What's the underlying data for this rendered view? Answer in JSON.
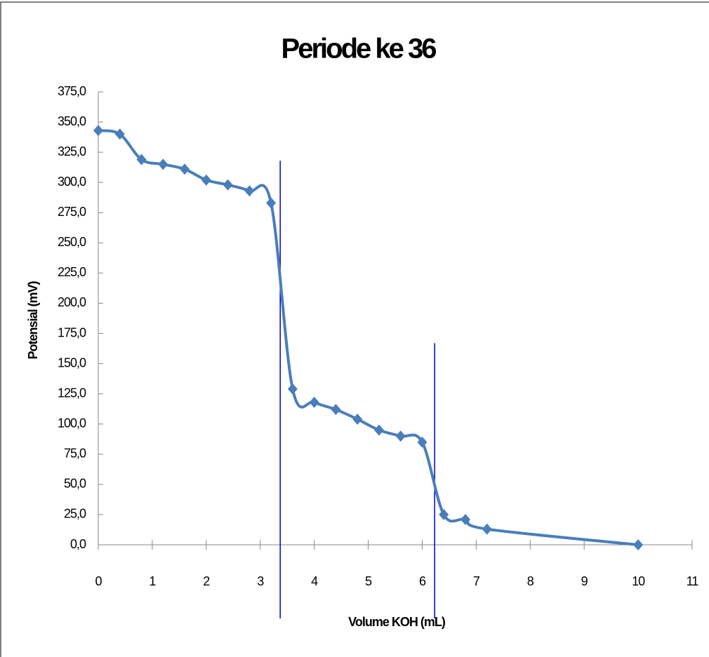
{
  "chart_data": {
    "type": "line",
    "title": "Periode ke 36",
    "x_label": "Volume KOH (mL)",
    "y_label": "Potensial (mV)",
    "x": [
      0,
      0.4,
      0.8,
      1.2,
      1.6,
      2.0,
      2.4,
      2.8,
      3.2,
      3.6,
      4.0,
      4.4,
      4.8,
      5.2,
      5.6,
      6.0,
      6.4,
      6.8,
      7.2,
      10
    ],
    "values": [
      343,
      340,
      319,
      315,
      311,
      302,
      298,
      293,
      283,
      129,
      118,
      112,
      104,
      95,
      90,
      85,
      25,
      21,
      13,
      0
    ],
    "color": "#4a7ebb",
    "xlim": [
      0,
      11
    ],
    "xticks": [
      0,
      1,
      2,
      3,
      4,
      5,
      6,
      7,
      8,
      9,
      10,
      11
    ],
    "ylim": [
      0,
      375
    ],
    "yticks": [
      {
        "value": 0,
        "label": "0,0"
      },
      {
        "value": 25,
        "label": "25,0"
      },
      {
        "value": 50,
        "label": "50,0"
      },
      {
        "value": 75,
        "label": "75,0"
      },
      {
        "value": 100,
        "label": "100,0"
      },
      {
        "value": 125,
        "label": "125,0"
      },
      {
        "value": 150,
        "label": "150,0"
      },
      {
        "value": 175,
        "label": "175,0"
      },
      {
        "value": 200,
        "label": "200,0"
      },
      {
        "value": 225,
        "label": "225,0"
      },
      {
        "value": 250,
        "label": "250,0"
      },
      {
        "value": 275,
        "label": "275,0"
      },
      {
        "value": 300,
        "label": "300,0"
      },
      {
        "value": 325,
        "label": "325,0"
      },
      {
        "value": 350,
        "label": "350,0"
      },
      {
        "value": 375,
        "label": "375,0"
      }
    ],
    "vlines": [
      {
        "x": 3.37,
        "ytop": 318
      },
      {
        "x": 6.23,
        "ytop": 167
      }
    ],
    "vline_color": "#0000cc"
  }
}
